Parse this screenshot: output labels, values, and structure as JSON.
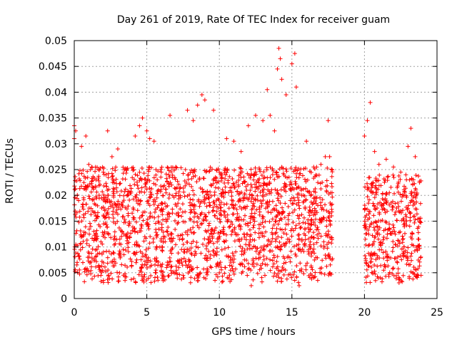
{
  "chart_data": {
    "type": "scatter",
    "title": "Day 261 of 2019, Rate Of TEC Index for receiver guam",
    "xlabel": "GPS time / hours",
    "ylabel": "ROTI / TECUs",
    "xlim": [
      0,
      25
    ],
    "ylim": [
      0,
      0.05
    ],
    "xticks": [
      0,
      5,
      10,
      15,
      20,
      25
    ],
    "xtick_labels": [
      "0",
      "5",
      "10",
      "15",
      "20",
      "25"
    ],
    "yticks": [
      0,
      0.005,
      0.01,
      0.015,
      0.02,
      0.025,
      0.03,
      0.035,
      0.04,
      0.045,
      0.05
    ],
    "ytick_labels": [
      "0",
      "0.005",
      "0.01",
      "0.015",
      "0.02",
      "0.025",
      "0.03",
      "0.035",
      "0.04",
      "0.045",
      "0.05"
    ],
    "grid": true,
    "marker": "+",
    "color": "#ff0000",
    "series": [
      {
        "name": "ROTI",
        "points": [
          [
            0.0,
            0.031
          ],
          [
            0.0,
            0.0335
          ],
          [
            0.1,
            0.0325
          ],
          [
            0.2,
            0.007
          ],
          [
            0.3,
            0.019
          ],
          [
            0.5,
            0.0295
          ],
          [
            0.8,
            0.0315
          ],
          [
            1.0,
            0.026
          ],
          [
            1.2,
            0.0255
          ],
          [
            1.5,
            0.023
          ],
          [
            2.0,
            0.0245
          ],
          [
            2.3,
            0.0325
          ],
          [
            2.6,
            0.0275
          ],
          [
            3.0,
            0.029
          ],
          [
            3.5,
            0.0035
          ],
          [
            4.2,
            0.0315
          ],
          [
            4.5,
            0.0335
          ],
          [
            4.7,
            0.035
          ],
          [
            5.0,
            0.0325
          ],
          [
            5.2,
            0.031
          ],
          [
            5.5,
            0.0305
          ],
          [
            6.0,
            0.0245
          ],
          [
            6.6,
            0.0355
          ],
          [
            7.0,
            0.0255
          ],
          [
            7.5,
            0.0045
          ],
          [
            7.8,
            0.0365
          ],
          [
            8.2,
            0.0345
          ],
          [
            8.5,
            0.0375
          ],
          [
            8.8,
            0.0395
          ],
          [
            9.0,
            0.0385
          ],
          [
            9.6,
            0.0365
          ],
          [
            10.0,
            0.0245
          ],
          [
            10.5,
            0.031
          ],
          [
            11.0,
            0.0305
          ],
          [
            11.5,
            0.0285
          ],
          [
            12.0,
            0.0335
          ],
          [
            12.2,
            0.0025
          ],
          [
            12.5,
            0.0355
          ],
          [
            13.0,
            0.0345
          ],
          [
            13.3,
            0.0405
          ],
          [
            13.5,
            0.0355
          ],
          [
            13.8,
            0.0325
          ],
          [
            14.0,
            0.0445
          ],
          [
            14.1,
            0.0485
          ],
          [
            14.2,
            0.0465
          ],
          [
            14.3,
            0.0425
          ],
          [
            14.6,
            0.0395
          ],
          [
            15.0,
            0.0455
          ],
          [
            15.2,
            0.0475
          ],
          [
            15.3,
            0.041
          ],
          [
            15.5,
            0.0025
          ],
          [
            16.0,
            0.0305
          ],
          [
            16.5,
            0.0255
          ],
          [
            17.0,
            0.026
          ],
          [
            17.3,
            0.0275
          ],
          [
            17.5,
            0.0345
          ],
          [
            17.6,
            0.0275
          ],
          [
            20.0,
            0.0315
          ],
          [
            20.2,
            0.0345
          ],
          [
            20.4,
            0.038
          ],
          [
            20.7,
            0.0285
          ],
          [
            21.0,
            0.026
          ],
          [
            21.5,
            0.027
          ],
          [
            22.0,
            0.0255
          ],
          [
            22.5,
            0.0245
          ],
          [
            23.0,
            0.0295
          ],
          [
            23.2,
            0.033
          ],
          [
            23.5,
            0.0275
          ],
          [
            23.8,
            0.0225
          ],
          [
            23.9,
            0.0045
          ]
        ]
      }
    ],
    "filled_region": {
      "description": "dense band of points",
      "segments": [
        {
          "x_start": 0.0,
          "x_end": 17.8,
          "y_low": 0.003,
          "y_high": 0.0255
        },
        {
          "x_start": 20.0,
          "x_end": 23.9,
          "y_low": 0.003,
          "y_high": 0.024
        }
      ],
      "data_gap": [
        17.8,
        20.0
      ]
    }
  }
}
